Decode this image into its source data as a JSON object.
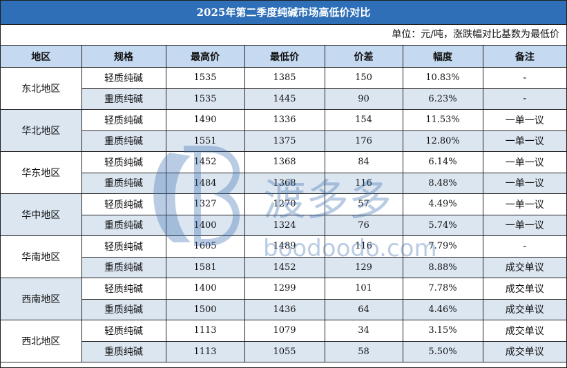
{
  "title": "2025年第二季度纯碱市场高低价对比",
  "unit_note": "单位：元/吨，涨跌幅对比基数为最低价",
  "headers": [
    "地区",
    "规格",
    "最高价",
    "最低价",
    "价差",
    "幅度",
    "备注"
  ],
  "regions": [
    {
      "name": "东北地区",
      "rows": [
        {
          "spec": "轻质纯碱",
          "high": "1535",
          "low": "1385",
          "diff": "150",
          "pct": "10.83%",
          "note": "-"
        },
        {
          "spec": "重质纯碱",
          "high": "1535",
          "low": "1445",
          "diff": "90",
          "pct": "6.23%",
          "note": "-"
        }
      ]
    },
    {
      "name": "华北地区",
      "rows": [
        {
          "spec": "轻质纯碱",
          "high": "1490",
          "low": "1336",
          "diff": "154",
          "pct": "11.53%",
          "note": "一单一议"
        },
        {
          "spec": "重质纯碱",
          "high": "1551",
          "low": "1375",
          "diff": "176",
          "pct": "12.80%",
          "note": "一单一议"
        }
      ]
    },
    {
      "name": "华东地区",
      "rows": [
        {
          "spec": "轻质纯碱",
          "high": "1452",
          "low": "1368",
          "diff": "84",
          "pct": "6.14%",
          "note": "一单一议"
        },
        {
          "spec": "重质纯碱",
          "high": "1484",
          "low": "1368",
          "diff": "116",
          "pct": "8.48%",
          "note": "一单一议"
        }
      ]
    },
    {
      "name": "华中地区",
      "rows": [
        {
          "spec": "轻质纯碱",
          "high": "1327",
          "low": "1270",
          "diff": "57",
          "pct": "4.49%",
          "note": "一单一议"
        },
        {
          "spec": "重质纯碱",
          "high": "1400",
          "low": "1324",
          "diff": "76",
          "pct": "5.74%",
          "note": "一单一议"
        }
      ]
    },
    {
      "name": "华南地区",
      "rows": [
        {
          "spec": "轻质纯碱",
          "high": "1605",
          "low": "1489",
          "diff": "116",
          "pct": "7.79%",
          "note": "-"
        },
        {
          "spec": "重质纯碱",
          "high": "1581",
          "low": "1452",
          "diff": "129",
          "pct": "8.88%",
          "note": "成交单议"
        }
      ]
    },
    {
      "name": "西南地区",
      "rows": [
        {
          "spec": "轻质纯碱",
          "high": "1400",
          "low": "1299",
          "diff": "101",
          "pct": "7.78%",
          "note": "成交单议"
        },
        {
          "spec": "重质纯碱",
          "high": "1500",
          "low": "1436",
          "diff": "64",
          "pct": "4.46%",
          "note": "成交单议"
        }
      ]
    },
    {
      "name": "西北地区",
      "rows": [
        {
          "spec": "轻质纯碱",
          "high": "1113",
          "low": "1079",
          "diff": "34",
          "pct": "3.15%",
          "note": "成交单议"
        },
        {
          "spec": "重质纯碱",
          "high": "1113",
          "low": "1055",
          "diff": "58",
          "pct": "5.50%",
          "note": "成交单议"
        }
      ]
    }
  ],
  "watermark": {
    "chars": "渡多多",
    "latin": "boodoodo.com",
    "color": "#3a6fb0"
  },
  "colors": {
    "title_bg": "#2e6fb7",
    "header_bg": "#c5d9f1",
    "alt_row_bg": "#dce6f1"
  }
}
